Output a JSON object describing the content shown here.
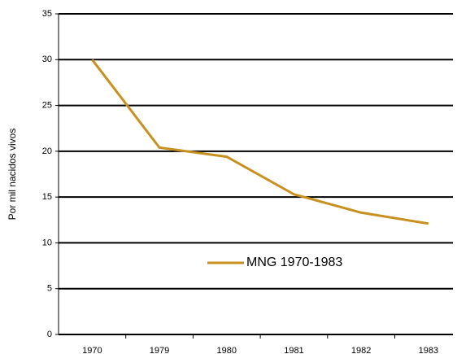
{
  "chart_data": {
    "type": "line",
    "y_label": "Por mil nacidos vivos",
    "categories": [
      "1970",
      "1979",
      "1980",
      "1981",
      "1982",
      "1983"
    ],
    "series": [
      {
        "name": "MNG 1970-1983",
        "color": "#c8901e",
        "values": [
          30,
          20.4,
          19.4,
          15.3,
          13.3,
          12.1
        ]
      }
    ],
    "ylim": [
      0,
      35
    ],
    "yticks": [
      0,
      5,
      10,
      15,
      20,
      25,
      30,
      35
    ],
    "grid": true
  }
}
